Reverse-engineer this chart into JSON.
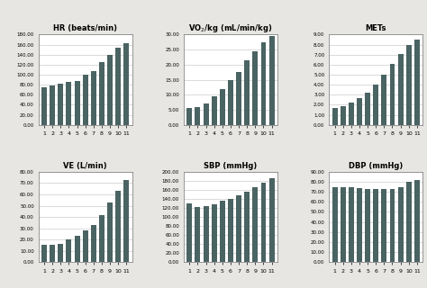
{
  "subplots": [
    {
      "title": "HR (beats/min)",
      "title_vo2": false,
      "values": [
        75,
        78,
        82,
        85,
        88,
        100,
        108,
        125,
        140,
        153,
        163
      ],
      "ylim": [
        0,
        180
      ],
      "yticks": [
        0,
        20,
        40,
        60,
        80,
        100,
        120,
        140,
        160,
        180
      ],
      "ytick_labels": [
        "0.00",
        "20.00",
        "40.00",
        "60.00",
        "80.00",
        "100.00",
        "120.00",
        "140.00",
        "160.00",
        "180.00"
      ]
    },
    {
      "title": "VO2/kg (mL/min/kg)",
      "title_vo2": true,
      "values": [
        5.5,
        6.0,
        7.0,
        9.5,
        12.0,
        15.0,
        17.5,
        21.5,
        24.5,
        27.5,
        29.5
      ],
      "ylim": [
        0,
        30
      ],
      "yticks": [
        0,
        5,
        10,
        15,
        20,
        25,
        30
      ],
      "ytick_labels": [
        "0.00",
        "5.00",
        "10.00",
        "15.00",
        "20.00",
        "25.00",
        "30.00"
      ]
    },
    {
      "title": "METs",
      "title_vo2": false,
      "values": [
        1.7,
        1.9,
        2.2,
        2.7,
        3.2,
        4.0,
        5.0,
        6.1,
        7.1,
        8.0,
        8.5
      ],
      "ylim": [
        0,
        9
      ],
      "yticks": [
        0,
        1,
        2,
        3,
        4,
        5,
        6,
        7,
        8,
        9
      ],
      "ytick_labels": [
        "0.00",
        "1.00",
        "2.00",
        "3.00",
        "4.00",
        "5.00",
        "6.00",
        "7.00",
        "8.00",
        "9.00"
      ]
    },
    {
      "title": "VE (L/min)",
      "title_vo2": false,
      "values": [
        15,
        15,
        16,
        20,
        23,
        28,
        33,
        42,
        53,
        63,
        73
      ],
      "ylim": [
        0,
        80
      ],
      "yticks": [
        0,
        10,
        20,
        30,
        40,
        50,
        60,
        70,
        80
      ],
      "ytick_labels": [
        "0.00",
        "10.00",
        "20.00",
        "30.00",
        "40.00",
        "50.00",
        "60.00",
        "70.00",
        "80.00"
      ]
    },
    {
      "title": "SBP (mmHg)",
      "title_vo2": false,
      "values": [
        130,
        122,
        125,
        128,
        135,
        140,
        148,
        155,
        165,
        175,
        185
      ],
      "ylim": [
        0,
        200
      ],
      "yticks": [
        0,
        20,
        40,
        60,
        80,
        100,
        120,
        140,
        160,
        180,
        200
      ],
      "ytick_labels": [
        "0.00",
        "20.00",
        "40.00",
        "60.00",
        "80.00",
        "100.00",
        "120.00",
        "140.00",
        "160.00",
        "180.00",
        "200.00"
      ]
    },
    {
      "title": "DBP (mmHg)",
      "title_vo2": false,
      "values": [
        75,
        75,
        75,
        74,
        73,
        73,
        73,
        73,
        75,
        80,
        82
      ],
      "ylim": [
        0,
        90
      ],
      "yticks": [
        0,
        10,
        20,
        30,
        40,
        50,
        60,
        70,
        80,
        90
      ],
      "ytick_labels": [
        "0.00",
        "10.00",
        "20.00",
        "30.00",
        "40.00",
        "50.00",
        "60.00",
        "70.00",
        "80.00",
        "90.00"
      ]
    }
  ],
  "bar_color": "#4a6363",
  "xticks": [
    1,
    2,
    3,
    4,
    5,
    6,
    7,
    8,
    9,
    10,
    11
  ],
  "fig_background": "#e8e6e2",
  "plot_background": "#ffffff",
  "grid_color": "#cccccc",
  "border_color": "#888888"
}
